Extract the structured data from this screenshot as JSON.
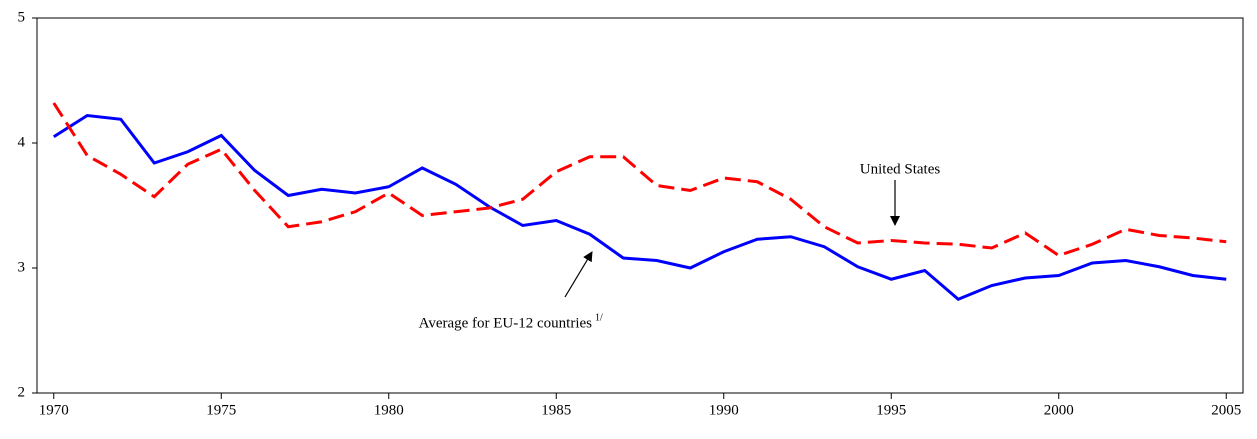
{
  "chart_data": {
    "type": "line",
    "x": [
      1970,
      1971,
      1972,
      1973,
      1974,
      1975,
      1976,
      1977,
      1978,
      1979,
      1980,
      1981,
      1982,
      1983,
      1984,
      1985,
      1986,
      1987,
      1988,
      1989,
      1990,
      1991,
      1992,
      1993,
      1994,
      1995,
      1996,
      1997,
      1998,
      1999,
      2000,
      2001,
      2002,
      2003,
      2004,
      2005
    ],
    "series": [
      {
        "name": "Average for EU-12 countries",
        "name_note": "1/",
        "color": "#0000ff",
        "dashed": false,
        "values": [
          4.05,
          4.22,
          4.19,
          3.84,
          3.93,
          4.06,
          3.78,
          3.58,
          3.63,
          3.6,
          3.65,
          3.8,
          3.67,
          3.49,
          3.34,
          3.38,
          3.27,
          3.08,
          3.06,
          3.0,
          3.13,
          3.23,
          3.25,
          3.17,
          3.01,
          2.91,
          2.98,
          2.75,
          2.86,
          2.92,
          2.94,
          3.04,
          3.06,
          3.01,
          2.94,
          2.91
        ]
      },
      {
        "name": "United States",
        "color": "#ff0000",
        "dashed": true,
        "values": [
          4.32,
          3.9,
          3.75,
          3.57,
          3.83,
          3.95,
          3.62,
          3.33,
          3.37,
          3.45,
          3.6,
          3.42,
          3.45,
          3.48,
          3.55,
          3.77,
          3.89,
          3.89,
          3.66,
          3.62,
          3.72,
          3.69,
          3.55,
          3.33,
          3.2,
          3.22,
          3.2,
          3.19,
          3.16,
          3.28,
          3.1,
          3.19,
          3.31,
          3.26,
          3.24,
          3.21
        ]
      }
    ],
    "xlim": [
      1969.5,
      2005.5
    ],
    "xticks": [
      1970,
      1975,
      1980,
      1985,
      1990,
      1995,
      2000,
      2005
    ],
    "ylim": [
      2,
      5
    ],
    "yticks": [
      2,
      3,
      4,
      5
    ],
    "grid": false
  }
}
